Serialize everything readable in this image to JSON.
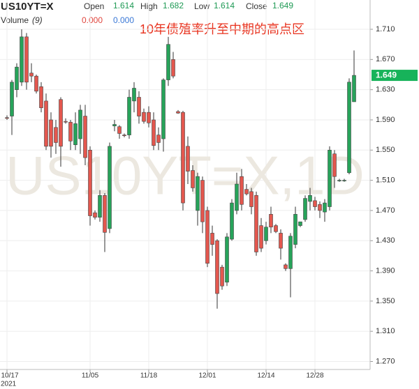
{
  "chart_data": {
    "type": "candlestick",
    "header": {
      "symbol": "US10YT=X",
      "open_label": "Open",
      "open": 1.614,
      "high_label": "High",
      "high": 1.682,
      "low_label": "Low",
      "low": 1.614,
      "close_label": "Close",
      "close": 1.649,
      "volume_label": "Volume",
      "volume_period": "(9)",
      "volume_values": [
        {
          "value": 0,
          "label": "0.000",
          "color": "#e0463e"
        },
        {
          "value": 0,
          "label": "0.000",
          "color": "#3a78d6"
        }
      ]
    },
    "annotation": "10年债殖率升至中期的高点区",
    "watermark": "US10YT=X,1D",
    "year_label": "2021",
    "last_price": 1.649,
    "up_color": "#27a35a",
    "down_color": "#e3574e",
    "categories": [
      "10/17",
      null,
      null,
      null,
      null,
      null,
      null,
      null,
      null,
      null,
      null,
      null,
      null,
      null,
      null,
      null,
      null,
      "11/05",
      null,
      null,
      null,
      null,
      null,
      null,
      null,
      null,
      null,
      null,
      null,
      "11/18",
      null,
      null,
      null,
      null,
      null,
      null,
      null,
      null,
      null,
      null,
      null,
      "12/01",
      null,
      null,
      null,
      null,
      null,
      null,
      null,
      null,
      null,
      null,
      null,
      "12/14",
      null,
      null,
      null,
      null,
      null,
      null,
      null,
      null,
      null,
      "12/28",
      null,
      null,
      null,
      null,
      null,
      null,
      null,
      null
    ],
    "open": [
      1.593,
      1.595,
      1.63,
      1.64,
      1.7,
      1.652,
      1.648,
      1.634,
      1.615,
      1.59,
      1.58,
      1.617,
      1.588,
      1.587,
      1.557,
      1.565,
      1.595,
      1.55,
      1.467,
      1.461,
      1.49,
      1.446,
      1.582,
      1.581,
      1.57,
      1.57,
      1.615,
      1.62,
      1.6,
      1.6,
      1.59,
      1.57,
      1.565,
      1.643,
      1.67,
      1.601,
      1.6,
      1.555,
      1.523,
      1.47,
      1.51,
      1.47,
      1.44,
      1.43,
      1.395,
      1.375,
      1.432,
      1.47,
      1.515,
      1.498,
      1.495,
      1.49,
      1.45,
      1.43,
      1.465,
      1.45,
      1.44,
      1.398,
      1.393,
      1.425,
      1.45,
      1.458,
      1.482,
      1.483,
      1.478,
      1.468,
      1.475,
      1.545,
      1.51,
      1.51,
      1.52,
      1.614
    ],
    "high": [
      1.596,
      1.643,
      1.665,
      1.71,
      1.705,
      1.665,
      1.65,
      1.64,
      1.625,
      1.6,
      1.59,
      1.62,
      1.592,
      1.59,
      1.6,
      1.61,
      1.61,
      1.555,
      1.47,
      1.497,
      1.493,
      1.56,
      1.59,
      1.583,
      1.572,
      1.63,
      1.64,
      1.628,
      1.605,
      1.608,
      1.6,
      1.58,
      1.645,
      1.7,
      1.68,
      1.603,
      1.602,
      1.568,
      1.53,
      1.52,
      1.515,
      1.475,
      1.45,
      1.432,
      1.398,
      1.44,
      1.485,
      1.52,
      1.525,
      1.505,
      1.5,
      1.495,
      1.46,
      1.455,
      1.475,
      1.452,
      1.445,
      1.4,
      1.44,
      1.475,
      1.455,
      1.49,
      1.5,
      1.488,
      1.482,
      1.485,
      1.555,
      1.55,
      1.512,
      1.512,
      1.645,
      1.682
    ],
    "low": [
      1.59,
      1.57,
      1.62,
      1.635,
      1.63,
      1.64,
      1.625,
      1.6,
      1.55,
      1.54,
      1.545,
      1.528,
      1.585,
      1.55,
      1.55,
      1.545,
      1.53,
      1.45,
      1.458,
      1.455,
      1.415,
      1.44,
      1.575,
      1.565,
      1.567,
      1.565,
      1.6,
      1.585,
      1.585,
      1.58,
      1.55,
      1.55,
      1.548,
      1.635,
      1.645,
      1.598,
      1.47,
      1.505,
      1.495,
      1.45,
      1.44,
      1.395,
      1.41,
      1.34,
      1.365,
      1.37,
      1.43,
      1.465,
      1.47,
      1.49,
      1.465,
      1.41,
      1.415,
      1.425,
      1.44,
      1.44,
      1.405,
      1.39,
      1.355,
      1.42,
      1.448,
      1.455,
      1.47,
      1.47,
      1.46,
      1.455,
      1.47,
      1.5,
      1.508,
      1.508,
      1.518,
      1.614
    ],
    "close": [
      1.592,
      1.64,
      1.66,
      1.7,
      1.64,
      1.648,
      1.628,
      1.606,
      1.555,
      1.555,
      1.56,
      1.555,
      1.587,
      1.562,
      1.585,
      1.603,
      1.54,
      1.463,
      1.461,
      1.49,
      1.441,
      1.555,
      1.584,
      1.572,
      1.569,
      1.62,
      1.632,
      1.595,
      1.588,
      1.586,
      1.556,
      1.56,
      1.643,
      1.69,
      1.648,
      1.599,
      1.48,
      1.522,
      1.5,
      1.515,
      1.455,
      1.4,
      1.425,
      1.36,
      1.37,
      1.435,
      1.48,
      1.505,
      1.478,
      1.492,
      1.475,
      1.415,
      1.42,
      1.448,
      1.448,
      1.442,
      1.42,
      1.393,
      1.436,
      1.465,
      1.455,
      1.486,
      1.49,
      1.475,
      1.47,
      1.48,
      1.55,
      1.515,
      1.51,
      1.51,
      1.64,
      1.649
    ],
    "ylim": [
      1.2594,
      1.7488
    ],
    "yticks": [
      {
        "value": 1.71,
        "label": "1.710"
      },
      {
        "value": 1.67,
        "label": "1.670"
      },
      {
        "value": 1.63,
        "label": "1.630"
      },
      {
        "value": 1.59,
        "label": "1.590"
      },
      {
        "value": 1.55,
        "label": "1.550"
      },
      {
        "value": 1.51,
        "label": "1.510"
      },
      {
        "value": 1.47,
        "label": "1.470"
      },
      {
        "value": 1.43,
        "label": "1.430"
      },
      {
        "value": 1.39,
        "label": "1.390"
      },
      {
        "value": 1.35,
        "label": "1.350"
      },
      {
        "value": 1.31,
        "label": "1.310"
      },
      {
        "value": 1.27,
        "label": "1.270"
      }
    ],
    "grid": true
  }
}
